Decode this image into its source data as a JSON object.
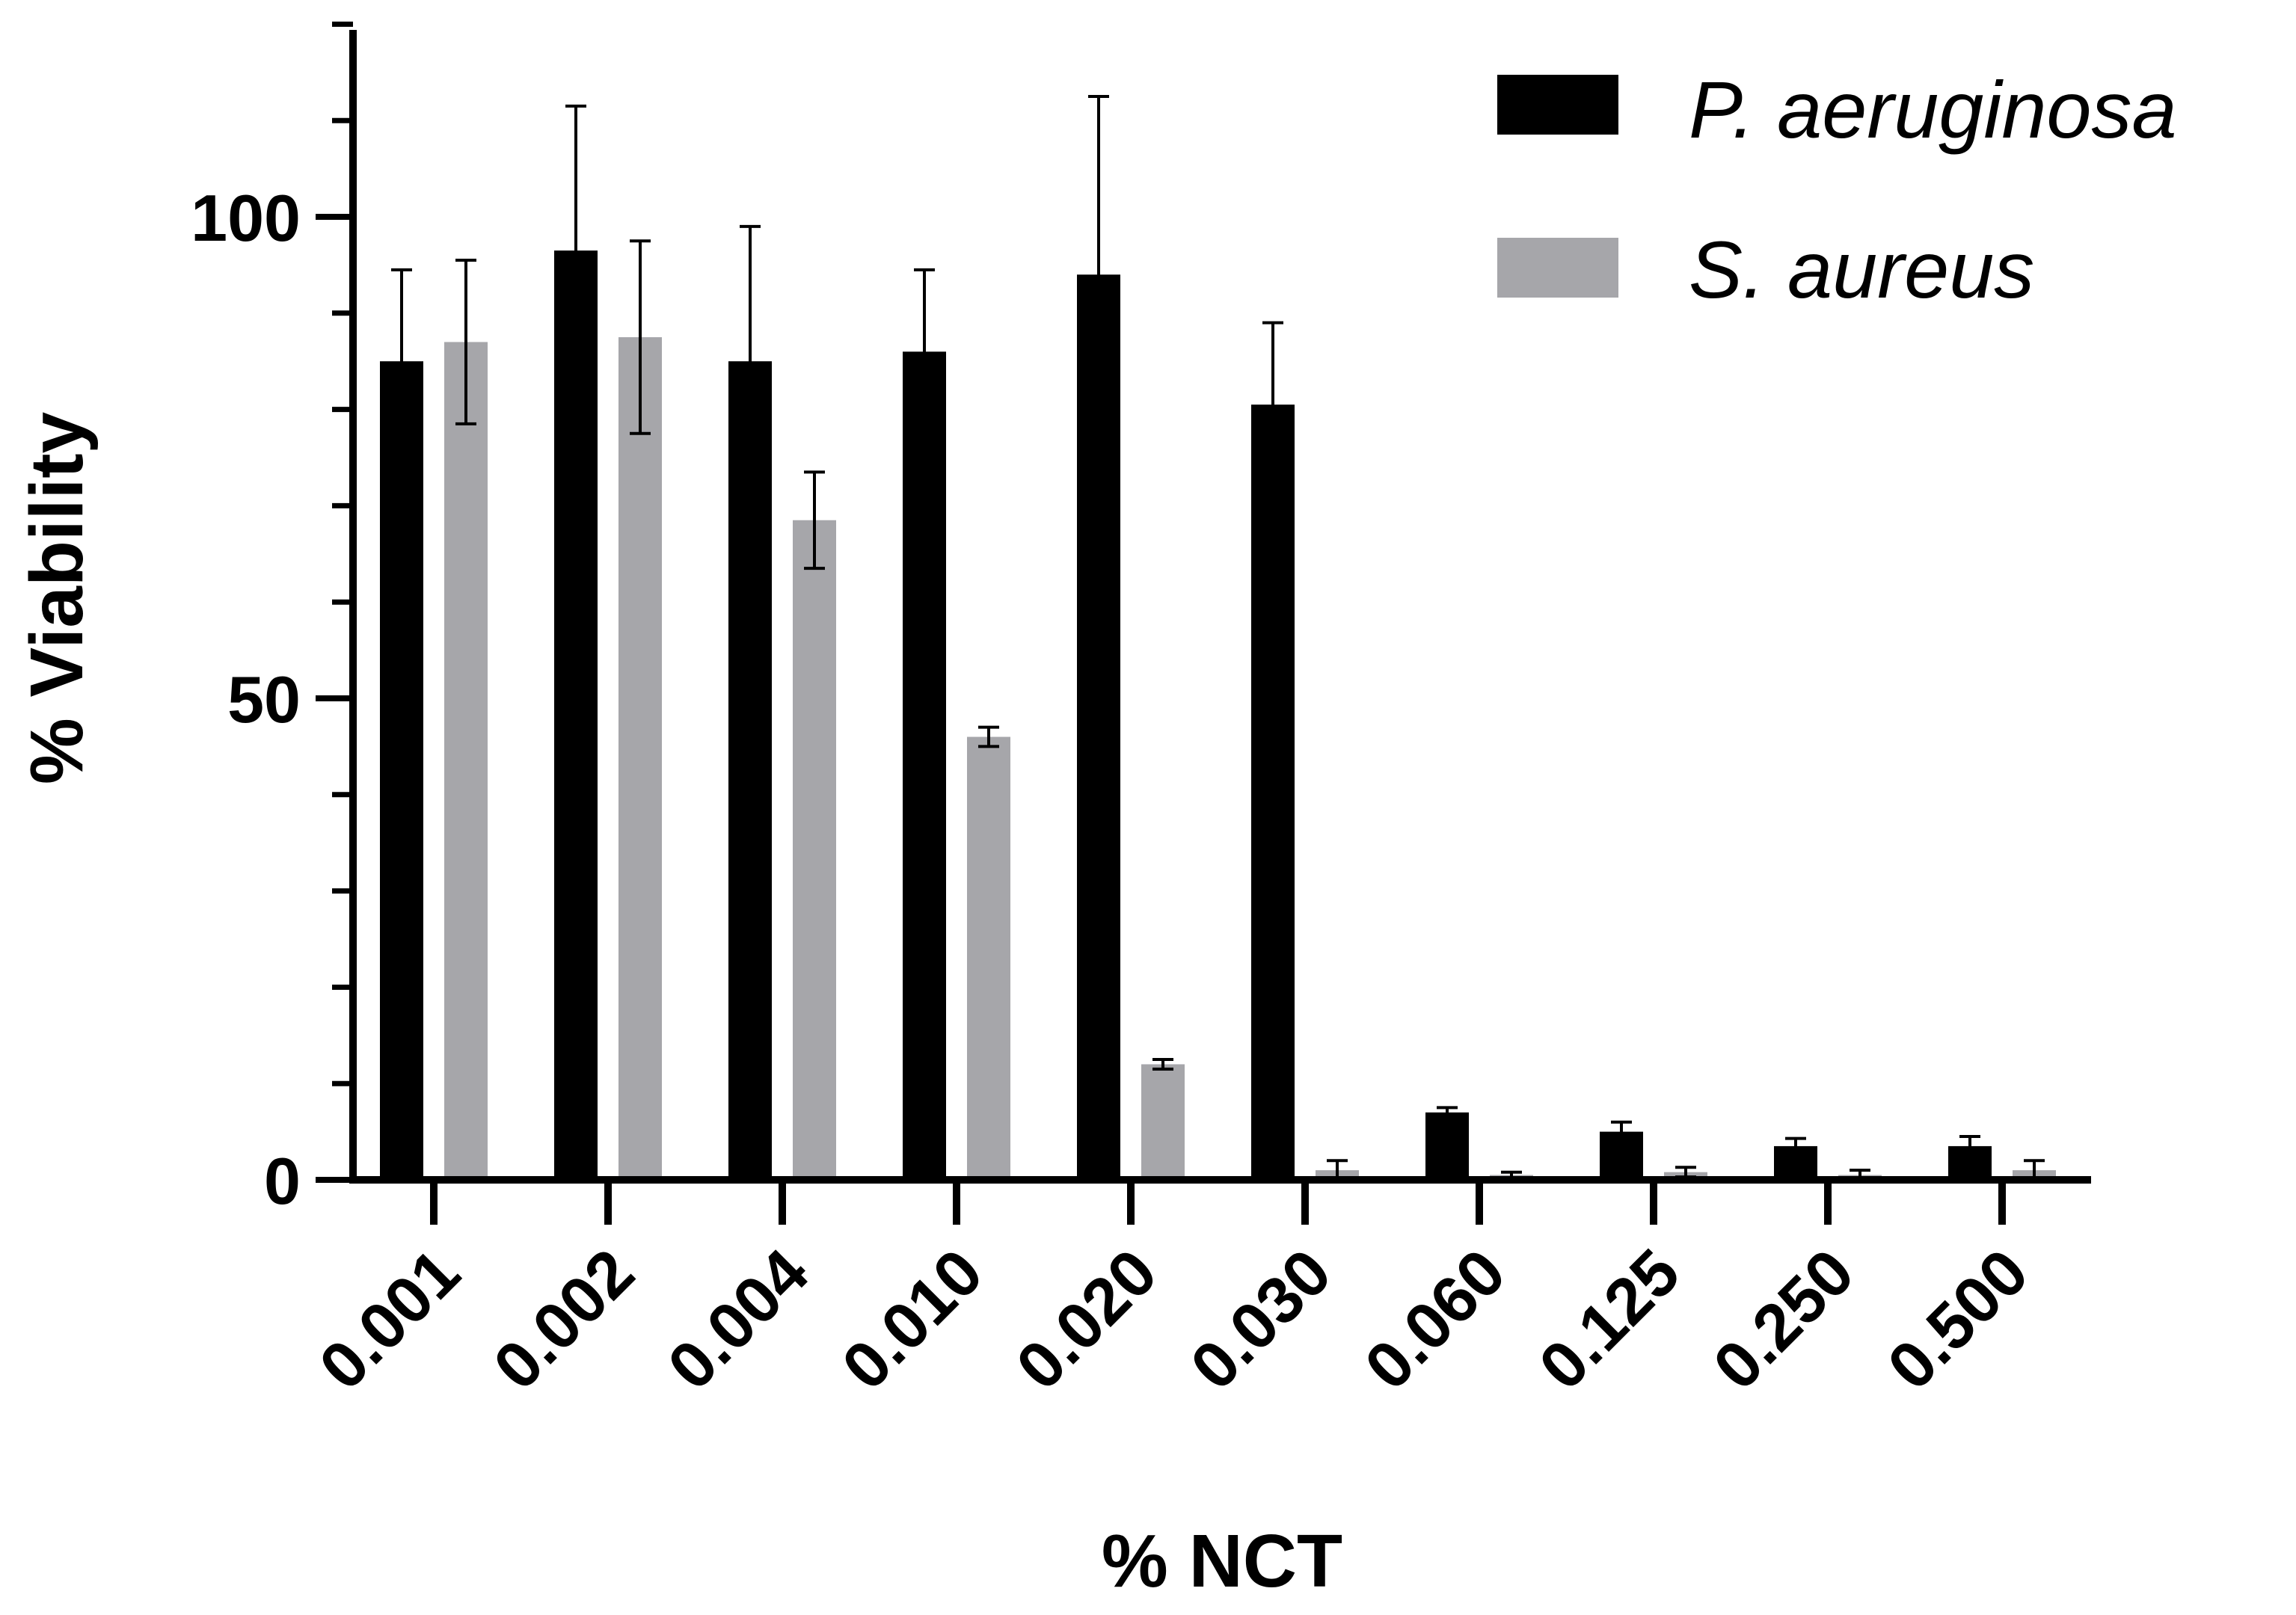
{
  "chart_data": {
    "type": "bar",
    "title": "",
    "xlabel": "% NCT",
    "ylabel": "% Viability",
    "ylim": [
      0,
      120
    ],
    "yticks_major": [
      0,
      50,
      100
    ],
    "yticks_minor_step": 10,
    "categories": [
      "0.001",
      "0.002",
      "0.004",
      "0.010",
      "0.020",
      "0.030",
      "0.060",
      "0.125",
      "0.250",
      "0.500"
    ],
    "series": [
      {
        "name": "P. aeruginosa",
        "color": "#000000",
        "values": [
          85,
          96.5,
          85,
          86,
          94,
          80.5,
          7,
          5,
          3.5,
          3.5
        ],
        "errors": [
          9.5,
          15,
          14,
          8.5,
          18.5,
          8.5,
          0.5,
          1,
          0.8,
          1
        ]
      },
      {
        "name": "S. aureus",
        "color": "#a6a6aa",
        "values": [
          87,
          87.5,
          68.5,
          46,
          12,
          1,
          0.5,
          0.8,
          0.5,
          1
        ],
        "errors": [
          8.5,
          10,
          5,
          1,
          0.5,
          1,
          0.3,
          0.5,
          0.5,
          1
        ]
      }
    ],
    "legend_position": "top-right"
  }
}
